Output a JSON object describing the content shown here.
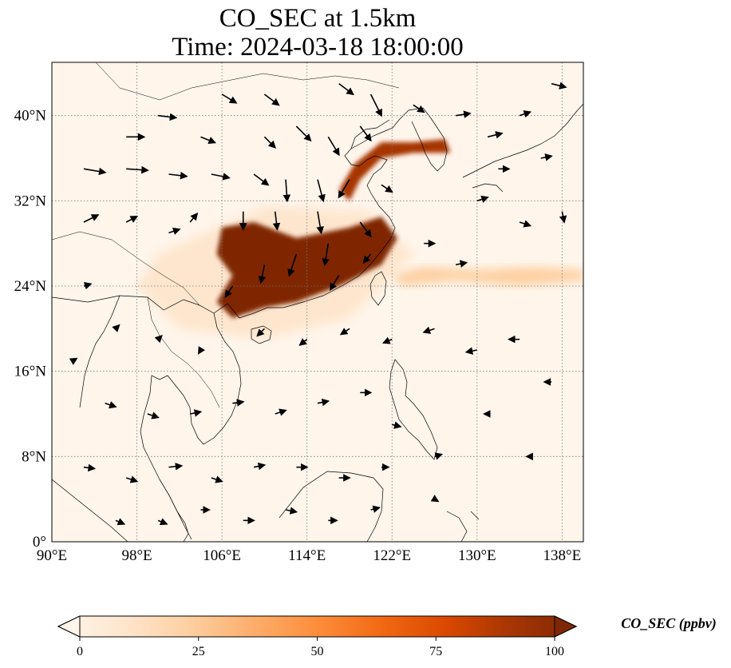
{
  "title": {
    "line1": "CO_SEC at 1.5km",
    "line2": "Time: 2024-03-18 18:00:00"
  },
  "map": {
    "extent": {
      "lon_min": 90,
      "lon_max": 140,
      "lat_min": 0,
      "lat_max": 45
    },
    "lon_ticks": [
      {
        "value": 90,
        "label": "90°E"
      },
      {
        "value": 98,
        "label": "98°E"
      },
      {
        "value": 106,
        "label": "106°E"
      },
      {
        "value": 114,
        "label": "114°E"
      },
      {
        "value": 122,
        "label": "122°E"
      },
      {
        "value": 130,
        "label": "130°E"
      },
      {
        "value": 138,
        "label": "138°E"
      }
    ],
    "lat_ticks": [
      {
        "value": 0,
        "label": "0°"
      },
      {
        "value": 8,
        "label": "8°N"
      },
      {
        "value": 16,
        "label": "16°N"
      },
      {
        "value": 24,
        "label": "24°N"
      },
      {
        "value": 32,
        "label": "32°N"
      },
      {
        "value": 40,
        "label": "40°N"
      }
    ],
    "gridlines": true,
    "field": "CO_SEC",
    "plume_regions": [
      {
        "name": "south-china-core",
        "value": 100,
        "lonlat": [
          [
            106,
            29.5
          ],
          [
            109,
            30
          ],
          [
            113,
            28.5
          ],
          [
            118,
            29.5
          ],
          [
            121,
            30.5
          ],
          [
            122.5,
            28.5
          ],
          [
            121,
            26
          ],
          [
            117,
            24
          ],
          [
            113,
            22.5
          ],
          [
            110,
            22
          ],
          [
            107,
            21
          ],
          [
            105.5,
            22.5
          ],
          [
            107,
            25
          ],
          [
            105.5,
            27
          ]
        ]
      },
      {
        "name": "north-china-coast",
        "value": 90,
        "lonlat": [
          [
            117,
            33
          ],
          [
            118.5,
            35.5
          ],
          [
            121,
            37.5
          ],
          [
            124,
            37.5
          ],
          [
            127,
            37.8
          ],
          [
            127.5,
            36.5
          ],
          [
            124,
            36.5
          ],
          [
            121,
            36
          ],
          [
            119,
            34
          ],
          [
            118,
            32
          ]
        ]
      },
      {
        "name": "pacific-outflow",
        "value": 25,
        "lonlat": [
          [
            122,
            25
          ],
          [
            125,
            25.8
          ],
          [
            130,
            25.5
          ],
          [
            135,
            25.8
          ],
          [
            140,
            25.5
          ],
          [
            140,
            24.5
          ],
          [
            134,
            24
          ],
          [
            128,
            24.5
          ],
          [
            123,
            24
          ]
        ]
      },
      {
        "name": "background-haze",
        "value": 8,
        "lonlat": [
          [
            100,
            27
          ],
          [
            110,
            31.5
          ],
          [
            120,
            31
          ],
          [
            124,
            27
          ],
          [
            118,
            21
          ],
          [
            110,
            19
          ],
          [
            102,
            20
          ],
          [
            98,
            24
          ]
        ]
      }
    ],
    "wind_vectors": [
      {
        "lon": 93,
        "lat": 35,
        "u": 3,
        "v": -0.5
      },
      {
        "lon": 97,
        "lat": 35,
        "u": 3,
        "v": -0.2
      },
      {
        "lon": 101,
        "lat": 34.5,
        "u": 2.5,
        "v": -0.3
      },
      {
        "lon": 105,
        "lat": 34.5,
        "u": 2.5,
        "v": -0.5
      },
      {
        "lon": 109,
        "lat": 34.5,
        "u": 2,
        "v": -1.5
      },
      {
        "lon": 112,
        "lat": 34,
        "u": 0.2,
        "v": -3
      },
      {
        "lon": 115,
        "lat": 34,
        "u": 0.8,
        "v": -3
      },
      {
        "lon": 118,
        "lat": 34,
        "u": -1.5,
        "v": -2.5
      },
      {
        "lon": 121,
        "lat": 33.5,
        "u": 1.5,
        "v": -1
      },
      {
        "lon": 110,
        "lat": 38,
        "u": 1.5,
        "v": -1.5
      },
      {
        "lon": 113,
        "lat": 39,
        "u": 2,
        "v": -2
      },
      {
        "lon": 116,
        "lat": 38,
        "u": 1.5,
        "v": -2.5
      },
      {
        "lon": 119,
        "lat": 39,
        "u": 1.5,
        "v": -2
      },
      {
        "lon": 117,
        "lat": 43,
        "u": 2,
        "v": -1.5
      },
      {
        "lon": 120,
        "lat": 42,
        "u": 1.5,
        "v": -3
      },
      {
        "lon": 110,
        "lat": 42,
        "u": 2,
        "v": -1.5
      },
      {
        "lon": 106,
        "lat": 42,
        "u": 2,
        "v": -1.2
      },
      {
        "lon": 100,
        "lat": 40,
        "u": 2.5,
        "v": -0.3
      },
      {
        "lon": 97,
        "lat": 38,
        "u": 2.5,
        "v": 0
      },
      {
        "lon": 104,
        "lat": 38,
        "u": 2,
        "v": -0.8
      },
      {
        "lon": 124,
        "lat": 41,
        "u": 1.5,
        "v": -1
      },
      {
        "lon": 128,
        "lat": 40,
        "u": 2,
        "v": 0.3
      },
      {
        "lon": 131,
        "lat": 38,
        "u": 2,
        "v": 0.5
      },
      {
        "lon": 134,
        "lat": 40,
        "u": 1.5,
        "v": 0.5
      },
      {
        "lon": 137,
        "lat": 43,
        "u": 2,
        "v": -0.5
      },
      {
        "lon": 132,
        "lat": 35,
        "u": 1.5,
        "v": 0
      },
      {
        "lon": 136,
        "lat": 36,
        "u": 1.5,
        "v": 0.3
      },
      {
        "lon": 93,
        "lat": 30,
        "u": 2,
        "v": 1
      },
      {
        "lon": 97,
        "lat": 30,
        "u": 1.5,
        "v": 0.8
      },
      {
        "lon": 101,
        "lat": 29,
        "u": 1.5,
        "v": 0.5
      },
      {
        "lon": 103,
        "lat": 30,
        "u": 1,
        "v": 1.2
      },
      {
        "lon": 108,
        "lat": 31,
        "u": 0,
        "v": -2.5
      },
      {
        "lon": 111,
        "lat": 31,
        "u": 0.3,
        "v": -2.5
      },
      {
        "lon": 115,
        "lat": 31,
        "u": 0.5,
        "v": -3
      },
      {
        "lon": 119,
        "lat": 30,
        "u": 1.5,
        "v": -2
      },
      {
        "lon": 113,
        "lat": 27,
        "u": -1,
        "v": -3
      },
      {
        "lon": 116,
        "lat": 28,
        "u": -0.5,
        "v": -3
      },
      {
        "lon": 110,
        "lat": 26,
        "u": -0.5,
        "v": -2.5
      },
      {
        "lon": 107,
        "lat": 24,
        "u": -1,
        "v": -1.5
      },
      {
        "lon": 117,
        "lat": 25,
        "u": -1.2,
        "v": -2
      },
      {
        "lon": 120,
        "lat": 27,
        "u": -1,
        "v": -1.2
      },
      {
        "lon": 125,
        "lat": 28,
        "u": 1.5,
        "v": 0
      },
      {
        "lon": 128,
        "lat": 26,
        "u": 1.5,
        "v": 0.3
      },
      {
        "lon": 130,
        "lat": 32,
        "u": 1.5,
        "v": 0.5
      },
      {
        "lon": 134,
        "lat": 30,
        "u": 1.5,
        "v": -0.5
      },
      {
        "lon": 138,
        "lat": 31,
        "u": 0.3,
        "v": -1.5
      },
      {
        "lon": 110,
        "lat": 20,
        "u": -1,
        "v": -1
      },
      {
        "lon": 114,
        "lat": 19,
        "u": -1,
        "v": -0.8
      },
      {
        "lon": 118,
        "lat": 20,
        "u": -1.2,
        "v": -0.8
      },
      {
        "lon": 122,
        "lat": 19,
        "u": -1.2,
        "v": -0.5
      },
      {
        "lon": 126,
        "lat": 20,
        "u": -1.5,
        "v": -0.5
      },
      {
        "lon": 130,
        "lat": 18,
        "u": -1.5,
        "v": -0.3
      },
      {
        "lon": 134,
        "lat": 19,
        "u": -1.5,
        "v": 0
      },
      {
        "lon": 137,
        "lat": 15,
        "u": -1,
        "v": 0
      },
      {
        "lon": 96,
        "lat": 20,
        "u": 0.5,
        "v": 0.5
      },
      {
        "lon": 100,
        "lat": 19,
        "u": 0.5,
        "v": 0.5
      },
      {
        "lon": 104,
        "lat": 18,
        "u": -0.3,
        "v": -0.5
      },
      {
        "lon": 95,
        "lat": 13,
        "u": 1.5,
        "v": -0.5
      },
      {
        "lon": 99,
        "lat": 12,
        "u": 1.5,
        "v": -0.5
      },
      {
        "lon": 103,
        "lat": 12,
        "u": 1.5,
        "v": 0.3
      },
      {
        "lon": 107,
        "lat": 13,
        "u": 1.5,
        "v": 0.2
      },
      {
        "lon": 111,
        "lat": 12,
        "u": 1.5,
        "v": 0.5
      },
      {
        "lon": 115,
        "lat": 13,
        "u": 1.5,
        "v": 0.3
      },
      {
        "lon": 119,
        "lat": 14,
        "u": 1.5,
        "v": 0
      },
      {
        "lon": 122,
        "lat": 11,
        "u": 1.2,
        "v": -0.3
      },
      {
        "lon": 93,
        "lat": 7,
        "u": 1.5,
        "v": -0.2
      },
      {
        "lon": 97,
        "lat": 6,
        "u": 1.5,
        "v": -0.5
      },
      {
        "lon": 101,
        "lat": 7,
        "u": 1.8,
        "v": 0.2
      },
      {
        "lon": 105,
        "lat": 6,
        "u": 1.5,
        "v": -0.5
      },
      {
        "lon": 109,
        "lat": 7,
        "u": 1.5,
        "v": 0.3
      },
      {
        "lon": 113,
        "lat": 7,
        "u": 1.5,
        "v": 0
      },
      {
        "lon": 117,
        "lat": 6,
        "u": 1.5,
        "v": 0
      },
      {
        "lon": 121,
        "lat": 7,
        "u": 1,
        "v": 0
      },
      {
        "lon": 126,
        "lat": 8,
        "u": 1,
        "v": 0.3
      },
      {
        "lon": 96,
        "lat": 2,
        "u": 1.2,
        "v": -0.5
      },
      {
        "lon": 100,
        "lat": 2,
        "u": 1.2,
        "v": -0.5
      },
      {
        "lon": 104,
        "lat": 3,
        "u": 1.2,
        "v": 0
      },
      {
        "lon": 108,
        "lat": 2,
        "u": 1.5,
        "v": 0
      },
      {
        "lon": 112,
        "lat": 3,
        "u": 1.5,
        "v": -0.3
      },
      {
        "lon": 116,
        "lat": 2,
        "u": 1.2,
        "v": 0
      },
      {
        "lon": 120,
        "lat": 3,
        "u": 1.2,
        "v": 0.3
      },
      {
        "lon": 126,
        "lat": 4,
        "u": 0.5,
        "v": -0.3
      },
      {
        "lon": 93,
        "lat": 24,
        "u": 1,
        "v": 0.3
      },
      {
        "lon": 92,
        "lat": 17,
        "u": 0.5,
        "v": 0.3
      },
      {
        "lon": 131,
        "lat": 12,
        "u": -0.5,
        "v": 0
      },
      {
        "lon": 135,
        "lat": 8,
        "u": -0.5,
        "v": 0
      }
    ]
  },
  "colorbar": {
    "label": "CO_SEC (ppbv)",
    "min": 0,
    "max": 100,
    "extend": "both",
    "ticks": [
      {
        "value": 0,
        "label": "0"
      },
      {
        "value": 25,
        "label": "25"
      },
      {
        "value": 50,
        "label": "50"
      },
      {
        "value": 75,
        "label": "75"
      },
      {
        "value": 100,
        "label": "100"
      }
    ],
    "colors": [
      "#fff5eb",
      "#fee6ce",
      "#fdd0a2",
      "#fdae6b",
      "#fd8d3c",
      "#f16913",
      "#d94801",
      "#a63603",
      "#7f2704"
    ]
  }
}
